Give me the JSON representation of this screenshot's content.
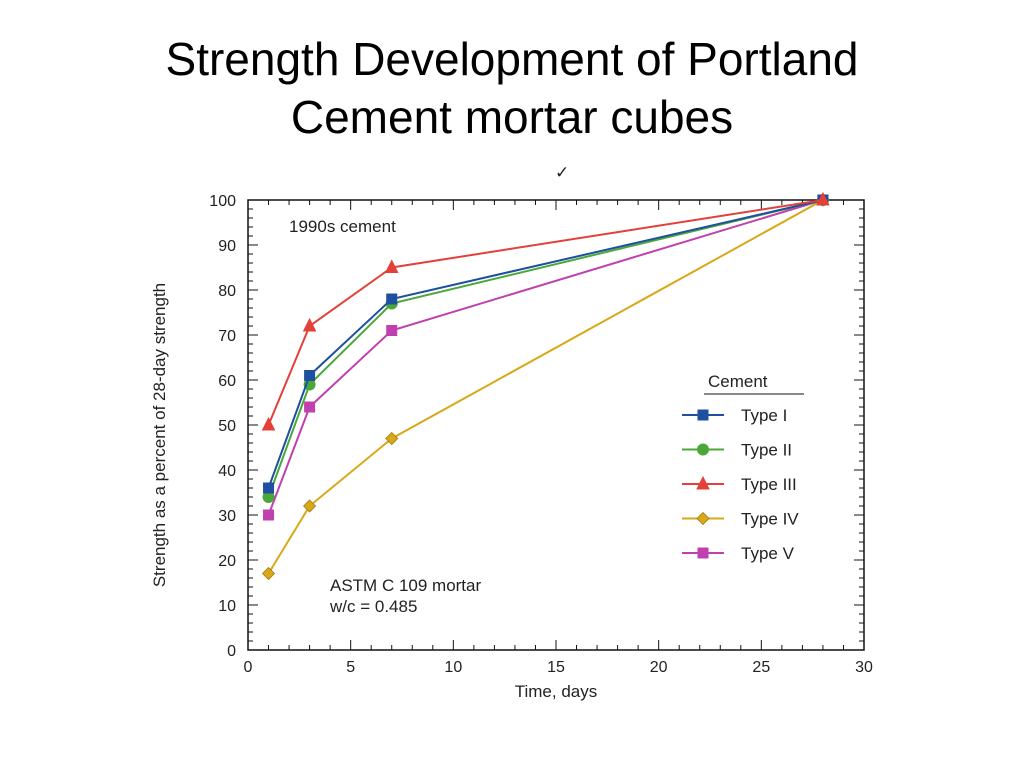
{
  "slide": {
    "title_line1": "Strength Development of Portland",
    "title_line2": "Cement mortar cubes"
  },
  "chart_data": {
    "type": "line",
    "xlabel": "Time, days",
    "ylabel": "Strength as a percent of 28-day strength",
    "xlim": [
      0,
      30
    ],
    "ylim": [
      0,
      100
    ],
    "x_ticks": [
      0,
      5,
      10,
      15,
      20,
      25,
      30
    ],
    "y_ticks": [
      0,
      10,
      20,
      30,
      40,
      50,
      60,
      70,
      80,
      90,
      100
    ],
    "grid": false,
    "legend_title": "Cement",
    "legend_position": "right",
    "annotations": {
      "top_left": "1990s cement",
      "bottom_line1": "ASTM C 109 mortar",
      "bottom_line2": "w/c = 0.485"
    },
    "x": [
      1,
      3,
      7,
      28
    ],
    "series": [
      {
        "name": "Type I",
        "values": [
          36,
          61,
          78,
          100
        ],
        "color": "#1f4fa0",
        "marker": "square"
      },
      {
        "name": "Type II",
        "values": [
          34,
          59,
          77,
          100
        ],
        "color": "#4aa838",
        "marker": "circle"
      },
      {
        "name": "Type III",
        "values": [
          50,
          72,
          85,
          100
        ],
        "color": "#e4403a",
        "marker": "triangle"
      },
      {
        "name": "Type IV",
        "values": [
          17,
          32,
          47,
          100
        ],
        "color": "#d9a818",
        "marker": "diamond"
      },
      {
        "name": "Type V",
        "values": [
          30,
          54,
          71,
          100
        ],
        "color": "#c040b0",
        "marker": "square"
      }
    ]
  }
}
